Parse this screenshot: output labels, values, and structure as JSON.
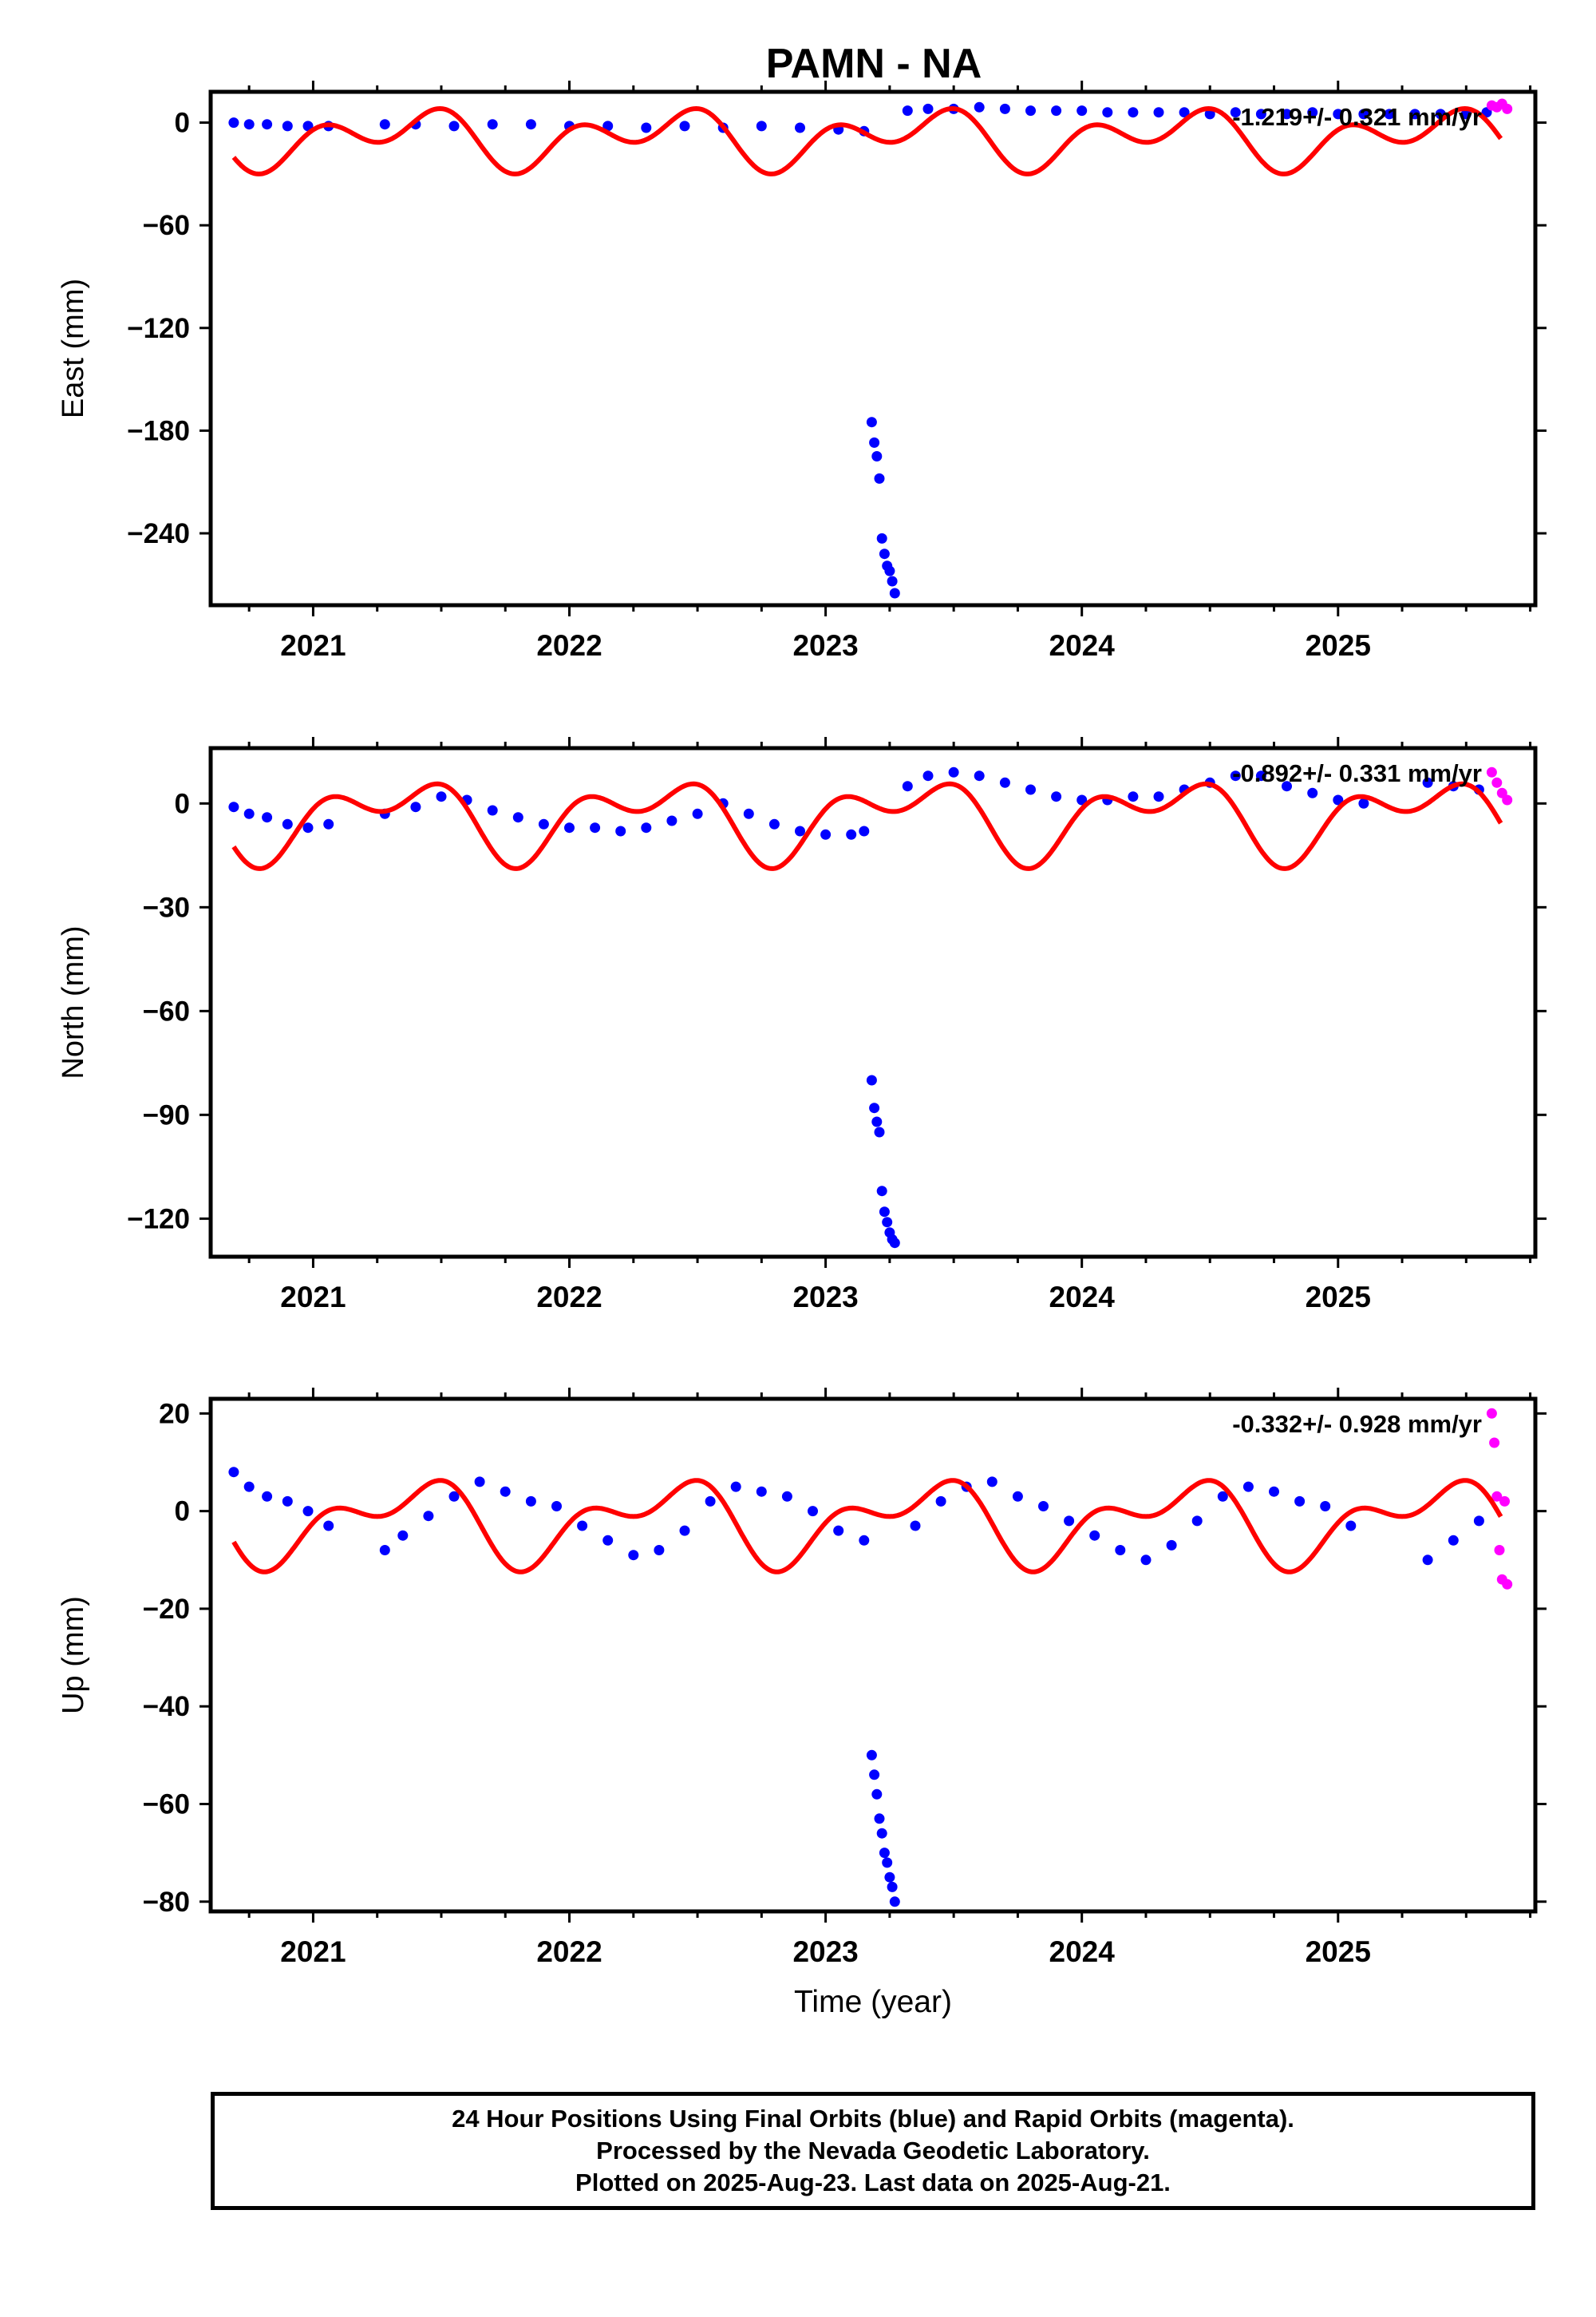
{
  "title": "PAMN - NA",
  "footer": {
    "line1": "24 Hour Positions Using Final Orbits (blue) and Rapid Orbits (magenta).",
    "line2": "Processed by the Nevada Geodetic Laboratory.",
    "line3": "Plotted on 2025-Aug-23. Last data on 2025-Aug-21."
  },
  "colors": {
    "final": "#0000ff",
    "rapid": "#ff00ff",
    "model": "#ff0000"
  },
  "chart_data": [
    {
      "type": "scatter",
      "ylabel": "East (mm)",
      "xlabel": "",
      "xlim": [
        2020.6,
        2025.77
      ],
      "ylim": [
        -282,
        18
      ],
      "xticks": [
        2021,
        2022,
        2023,
        2024,
        2025
      ],
      "yticks": [
        0,
        -60,
        -120,
        -180,
        -240
      ],
      "rate_text": "-1.219+/- 0.321 mm/yr",
      "series": [
        {
          "role": "final",
          "x": [
            2020.69,
            2020.75,
            2020.82,
            2020.9,
            2020.98,
            2021.06,
            2021.28,
            2021.4,
            2021.55,
            2021.7,
            2021.85,
            2022.0,
            2022.15,
            2022.3,
            2022.45,
            2022.6,
            2022.75,
            2022.9,
            2023.05,
            2023.15,
            2023.18,
            2023.19,
            2023.2,
            2023.21,
            2023.22,
            2023.23,
            2023.24,
            2023.25,
            2023.26,
            2023.27,
            2023.32,
            2023.4,
            2023.5,
            2023.6,
            2023.7,
            2023.8,
            2023.9,
            2024.0,
            2024.1,
            2024.2,
            2024.3,
            2024.4,
            2024.5,
            2024.6,
            2024.7,
            2024.8,
            2024.9,
            2025.0,
            2025.1,
            2025.2,
            2025.3,
            2025.4,
            2025.5,
            2025.58
          ],
          "y": [
            0,
            -1,
            -1,
            -2,
            -2,
            -2,
            -1,
            -1,
            -2,
            -1,
            -1,
            -2,
            -2,
            -3,
            -2,
            -3,
            -2,
            -3,
            -4,
            -5,
            -175,
            -187,
            -195,
            -208,
            -243,
            -252,
            -259,
            -262,
            -268,
            -275,
            7,
            8,
            8,
            9,
            8,
            7,
            7,
            7,
            6,
            6,
            6,
            6,
            5,
            6,
            5,
            5,
            6,
            5,
            5,
            5,
            5,
            5,
            5,
            6
          ]
        },
        {
          "role": "rapid",
          "x": [
            2025.6,
            2025.62,
            2025.64,
            2025.66
          ],
          "y": [
            10,
            9,
            11,
            8
          ]
        },
        {
          "role": "model",
          "fit": {
            "offset": -9,
            "a1": 10.5,
            "phase1": 2.2,
            "a2": 11.5,
            "phase2": 0.3
          }
        }
      ]
    },
    {
      "type": "scatter",
      "ylabel": "North (mm)",
      "xlabel": "",
      "xlim": [
        2020.6,
        2025.77
      ],
      "ylim": [
        -131,
        16
      ],
      "xticks": [
        2021,
        2022,
        2023,
        2024,
        2025
      ],
      "yticks": [
        0,
        -30,
        -60,
        -90,
        -120
      ],
      "rate_text": "-0.892+/- 0.331 mm/yr",
      "series": [
        {
          "role": "final",
          "x": [
            2020.69,
            2020.75,
            2020.82,
            2020.9,
            2020.98,
            2021.06,
            2021.28,
            2021.4,
            2021.5,
            2021.6,
            2021.7,
            2021.8,
            2021.9,
            2022.0,
            2022.1,
            2022.2,
            2022.3,
            2022.4,
            2022.5,
            2022.6,
            2022.7,
            2022.8,
            2022.9,
            2023.0,
            2023.1,
            2023.15,
            2023.18,
            2023.19,
            2023.2,
            2023.21,
            2023.22,
            2023.23,
            2023.24,
            2023.25,
            2023.26,
            2023.27,
            2023.32,
            2023.4,
            2023.5,
            2023.6,
            2023.7,
            2023.8,
            2023.9,
            2024.0,
            2024.1,
            2024.2,
            2024.3,
            2024.4,
            2024.5,
            2024.6,
            2024.7,
            2024.8,
            2024.9,
            2025.0,
            2025.1,
            2025.35,
            2025.45,
            2025.55
          ],
          "y": [
            -1,
            -3,
            -4,
            -6,
            -7,
            -6,
            -3,
            -1,
            2,
            1,
            -2,
            -4,
            -6,
            -7,
            -7,
            -8,
            -7,
            -5,
            -3,
            0,
            -3,
            -6,
            -8,
            -9,
            -9,
            -8,
            -80,
            -88,
            -92,
            -95,
            -112,
            -118,
            -121,
            -124,
            -126,
            -127,
            5,
            8,
            9,
            8,
            6,
            4,
            2,
            1,
            1,
            2,
            2,
            4,
            6,
            8,
            8,
            5,
            3,
            1,
            0,
            6,
            5,
            4
          ]
        },
        {
          "role": "rapid",
          "x": [
            2025.6,
            2025.62,
            2025.64,
            2025.66
          ],
          "y": [
            9,
            6,
            3,
            1
          ]
        },
        {
          "role": "model",
          "fit": {
            "offset": -4,
            "a1": 8.5,
            "phase1": 2.0,
            "a2": 6.5,
            "phase2": 0.4
          }
        }
      ]
    },
    {
      "type": "scatter",
      "ylabel": "Up (mm)",
      "xlabel": "Time (year)",
      "xlim": [
        2020.6,
        2025.77
      ],
      "ylim": [
        -82,
        23
      ],
      "xticks": [
        2021,
        2022,
        2023,
        2024,
        2025
      ],
      "yticks": [
        20,
        0,
        -20,
        -40,
        -60,
        -80
      ],
      "rate_text": "-0.332+/- 0.928 mm/yr",
      "series": [
        {
          "role": "final",
          "x": [
            2020.69,
            2020.75,
            2020.82,
            2020.9,
            2020.98,
            2021.06,
            2021.28,
            2021.35,
            2021.45,
            2021.55,
            2021.65,
            2021.75,
            2021.85,
            2021.95,
            2022.05,
            2022.15,
            2022.25,
            2022.35,
            2022.45,
            2022.55,
            2022.65,
            2022.75,
            2022.85,
            2022.95,
            2023.05,
            2023.15,
            2023.18,
            2023.19,
            2023.2,
            2023.21,
            2023.22,
            2023.23,
            2023.24,
            2023.25,
            2023.26,
            2023.27,
            2023.35,
            2023.45,
            2023.55,
            2023.65,
            2023.75,
            2023.85,
            2023.95,
            2024.05,
            2024.15,
            2024.25,
            2024.35,
            2024.45,
            2024.55,
            2024.65,
            2024.75,
            2024.85,
            2024.95,
            2025.05,
            2025.35,
            2025.45,
            2025.55
          ],
          "y": [
            8,
            5,
            3,
            2,
            0,
            -3,
            -8,
            -5,
            -1,
            3,
            6,
            4,
            2,
            1,
            -3,
            -6,
            -9,
            -8,
            -4,
            2,
            5,
            4,
            3,
            0,
            -4,
            -6,
            -50,
            -54,
            -58,
            -63,
            -66,
            -70,
            -72,
            -75,
            -77,
            -80,
            -3,
            2,
            5,
            6,
            3,
            1,
            -2,
            -5,
            -8,
            -10,
            -7,
            -2,
            3,
            5,
            4,
            2,
            1,
            -3,
            -10,
            -6,
            -2
          ]
        },
        {
          "role": "rapid",
          "x": [
            2025.6,
            2025.61,
            2025.62,
            2025.63,
            2025.64,
            2025.65,
            2025.66
          ],
          "y": [
            20,
            14,
            3,
            -8,
            -14,
            2,
            -15
          ]
        },
        {
          "role": "model",
          "fit": {
            "offset": -2,
            "a1": 6.5,
            "phase1": 2.3,
            "a2": 4.5,
            "phase2": 0.5
          }
        }
      ]
    }
  ]
}
